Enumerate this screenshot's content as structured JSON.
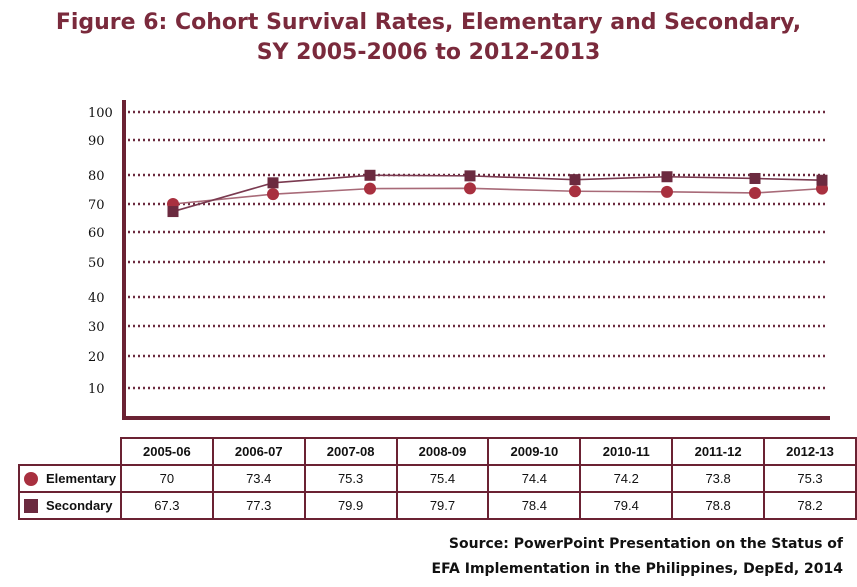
{
  "title_line1": "Figure 6: Cohort Survival Rates, Elementary and Secondary,",
  "title_line2": "SY 2005-2006 to 2012-2013",
  "chart_data": {
    "type": "line",
    "title": "Figure 6: Cohort Survival Rates, Elementary and Secondary, SY 2005-2006 to 2012-2013",
    "categories": [
      "2005-06",
      "2006-07",
      "2007-08",
      "2008-09",
      "2009-10",
      "2010-11",
      "2011-12",
      "2012-13"
    ],
    "y_ticks": [
      "100",
      "90",
      "80",
      "70",
      "60",
      "50",
      "40",
      "30",
      "20",
      "10"
    ],
    "ylim": [
      0,
      100
    ],
    "grid": true,
    "grid_style": "dotted",
    "series": [
      {
        "name": "Elementary",
        "marker": "circle",
        "color": "#a8303f",
        "line_color": "#a86a78",
        "values": [
          70,
          73.4,
          75.3,
          75.4,
          74.4,
          74.2,
          73.8,
          75.3
        ],
        "labels": [
          "70",
          "73.4",
          "75.3",
          "75.4",
          "74.4",
          "74.2",
          "73.8",
          "75.3"
        ]
      },
      {
        "name": "Secondary",
        "marker": "square",
        "color": "#6b2a3f",
        "line_color": "#7a3a50",
        "values": [
          67.3,
          77.3,
          79.9,
          79.7,
          78.4,
          79.4,
          78.8,
          78.2
        ],
        "labels": [
          "67.3",
          "77.3",
          "79.9",
          "79.7",
          "78.4",
          "79.4",
          "78.8",
          "78.2"
        ]
      }
    ]
  },
  "source_line1": "Source:  PowerPoint Presentation on the Status of",
  "source_line2": "EFA Implementation in the Philippines, DepEd, 2014"
}
